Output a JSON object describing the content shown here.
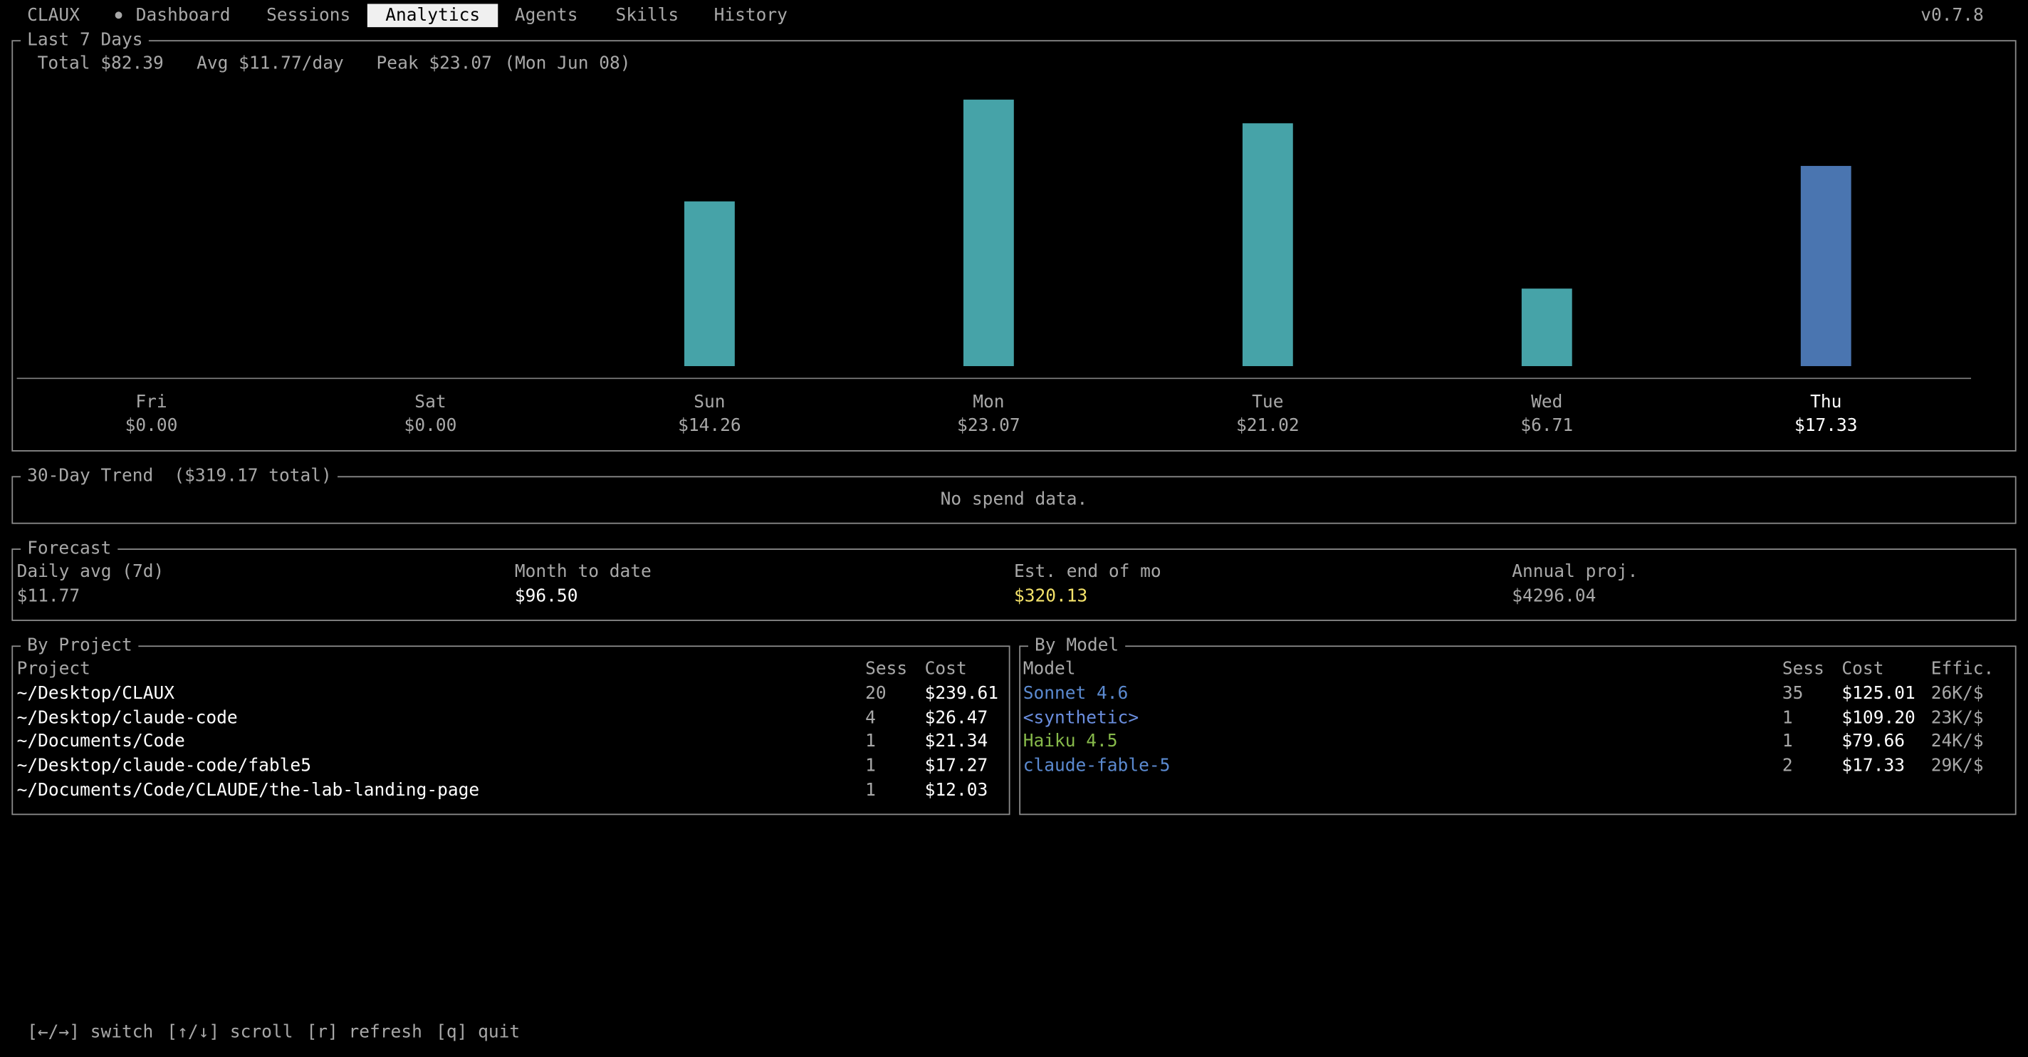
{
  "nav": {
    "brand": "CLAUX",
    "tabs": [
      "Dashboard",
      "Sessions",
      "Analytics",
      "Agents",
      "Skills",
      "History"
    ],
    "active_index": 2,
    "version": "v0.7.8"
  },
  "last7": {
    "title": "Last 7 Days",
    "stats": [
      "Total $82.39",
      "Avg $11.77/day",
      "Peak $23.07",
      "(Mon Jun 08)"
    ]
  },
  "chart_data": {
    "type": "bar",
    "categories": [
      "Fri",
      "Sat",
      "Sun",
      "Mon",
      "Tue",
      "Wed",
      "Thu"
    ],
    "values": [
      0,
      0,
      14.26,
      23.07,
      21.02,
      6.71,
      17.33
    ],
    "value_labels": [
      "$0.00",
      "$0.00",
      "$14.26",
      "$23.07",
      "$21.02",
      "$6.71",
      "$17.33"
    ],
    "colors": [
      "#46a3a8",
      "#46a3a8",
      "#46a3a8",
      "#46a3a8",
      "#46a3a8",
      "#46a3a8",
      "#4a75b0"
    ]
  },
  "trend": {
    "title": "30-Day Trend",
    "subtitle": "($319.17 total)",
    "message": "No spend data."
  },
  "forecast": {
    "title": "Forecast",
    "items": [
      {
        "label": "Daily avg (7d)",
        "value": "$11.77",
        "color": "#a8a8a8"
      },
      {
        "label": "Month to date",
        "value": "$96.50",
        "color": "#ffffff"
      },
      {
        "label": "Est. end of mo",
        "value": "$320.13",
        "color": "#f4e26a"
      },
      {
        "label": "Annual proj.",
        "value": "$4296.04",
        "color": "#a8a8a8"
      }
    ]
  },
  "by_project": {
    "title": "By Project",
    "columns": [
      "Project",
      "Sess",
      "Cost"
    ],
    "rows": [
      [
        "~/Desktop/CLAUX",
        "20",
        "$239.61"
      ],
      [
        "~/Desktop/claude-code",
        "4",
        "$26.47"
      ],
      [
        "~/Documents/Code",
        "1",
        "$21.34"
      ],
      [
        "~/Desktop/claude-code/fable5",
        "1",
        "$17.27"
      ],
      [
        "~/Documents/Code/CLAUDE/the-lab-landing-page",
        "1",
        "$12.03"
      ]
    ]
  },
  "by_model": {
    "title": "By Model",
    "columns": [
      "Model",
      "Sess",
      "Cost",
      "Effic."
    ],
    "rows": [
      {
        "cells": [
          "Sonnet 4.6",
          "35",
          "$125.01",
          "26K/$"
        ],
        "color": "#5b8ad0"
      },
      {
        "cells": [
          "<synthetic>",
          "1",
          "$109.20",
          "23K/$"
        ],
        "color": "#6b8fe0"
      },
      {
        "cells": [
          "Haiku 4.5",
          "1",
          "$79.66",
          "24K/$"
        ],
        "color": "#86b94a"
      },
      {
        "cells": [
          "claude-fable-5",
          "2",
          "$17.33",
          "29K/$"
        ],
        "color": "#5b8ad0"
      }
    ]
  },
  "footer": [
    "[←/→] switch",
    "[↑/↓] scroll",
    "[r] refresh",
    "[q] quit"
  ]
}
